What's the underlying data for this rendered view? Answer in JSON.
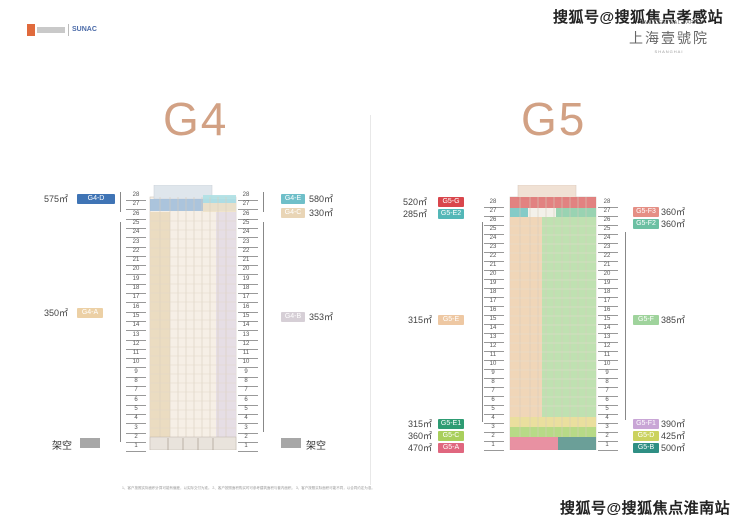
{
  "header": {
    "watermark_top": "搜狐号@搜狐焦点孝感站",
    "logo_brand": "SUNAC",
    "project_en": "ONE CENTRAL PARK",
    "project_cn": "上海壹號院",
    "project_sub": "SHANGHAI"
  },
  "footer": {
    "watermark_bottom": "搜狐号@搜狐焦点淮南站",
    "footnote": "1、客户按照实际面积计算可能有偏差，以实际交付为准。 2、客户按照面积购买时可参考建筑面积与套内面积。 3、客户按照实际面积可能不同，以合同约定为准。"
  },
  "colors": {
    "title": "#d2a184",
    "g4_d": "#3f74b5",
    "g4_e": "#6fbfc9",
    "g4_c": "#e9d5b6",
    "g4_a": "#ecd0a5",
    "g4_b": "#d6cfd6",
    "g5_g": "#d9464c",
    "g5_e2": "#53b7b7",
    "g5_f3": "#e58f85",
    "g5_f2": "#6cc0a3",
    "g5_e": "#eec8a3",
    "g5_f": "#9fd39c",
    "g5_e1": "#2e9c73",
    "g5_c": "#a9cf5c",
    "g5_a": "#e0677f",
    "g5_f1": "#c9a6d6",
    "g5_d": "#cbd25f",
    "g5_b": "#2f8f84",
    "elevated_floor": "#a7a7a7"
  },
  "g4": {
    "title": "G4",
    "ground_label": "架空",
    "floors_left": [
      "28",
      "27",
      "26",
      "25",
      "24",
      "23",
      "22",
      "21",
      "20",
      "19",
      "18",
      "17",
      "16",
      "15",
      "14",
      "13",
      "12",
      "11",
      "10",
      "9",
      "8",
      "7",
      "6",
      "5",
      "4",
      "3",
      "2",
      "1"
    ],
    "floors_right": [
      "28",
      "27",
      "26",
      "25",
      "24",
      "23",
      "22",
      "21",
      "20",
      "19",
      "18",
      "17",
      "16",
      "15",
      "14",
      "13",
      "12",
      "11",
      "10",
      "9",
      "8",
      "7",
      "6",
      "5",
      "4",
      "3",
      "2",
      "1"
    ],
    "units_left": [
      {
        "tag": "G4-D",
        "area": "575㎡"
      },
      {
        "tag": "G4-A",
        "area": "350㎡"
      }
    ],
    "units_right": [
      {
        "tag": "G4-E",
        "area": "580㎡"
      },
      {
        "tag": "G4-C",
        "area": "330㎡"
      },
      {
        "tag": "G4-B",
        "area": "353㎡"
      }
    ]
  },
  "g5": {
    "title": "G5",
    "floors_left": [
      "28",
      "27",
      "26",
      "25",
      "24",
      "23",
      "22",
      "21",
      "20",
      "19",
      "18",
      "17",
      "16",
      "15",
      "14",
      "13",
      "12",
      "11",
      "10",
      "9",
      "8",
      "7",
      "6",
      "5",
      "4",
      "3",
      "2",
      "1"
    ],
    "floors_right": [
      "28",
      "27",
      "26",
      "25",
      "24",
      "23",
      "22",
      "21",
      "20",
      "19",
      "18",
      "17",
      "16",
      "15",
      "14",
      "13",
      "12",
      "11",
      "10",
      "9",
      "8",
      "7",
      "6",
      "5",
      "4",
      "3",
      "2",
      "1"
    ],
    "units_left": [
      {
        "tag": "G5-G",
        "area": "520㎡"
      },
      {
        "tag": "G5-E2",
        "area": "285㎡"
      },
      {
        "tag": "G5-E",
        "area": "315㎡"
      },
      {
        "tag": "G5-E1",
        "area": "315㎡"
      },
      {
        "tag": "G5-C",
        "area": "360㎡"
      },
      {
        "tag": "G5-A",
        "area": "470㎡"
      }
    ],
    "units_right": [
      {
        "tag": "G5-F3",
        "area": "360㎡"
      },
      {
        "tag": "G5-F2",
        "area": "360㎡"
      },
      {
        "tag": "G5-F",
        "area": "385㎡"
      },
      {
        "tag": "G5-F1",
        "area": "390㎡"
      },
      {
        "tag": "G5-D",
        "area": "425㎡"
      },
      {
        "tag": "G5-B",
        "area": "500㎡"
      }
    ]
  }
}
